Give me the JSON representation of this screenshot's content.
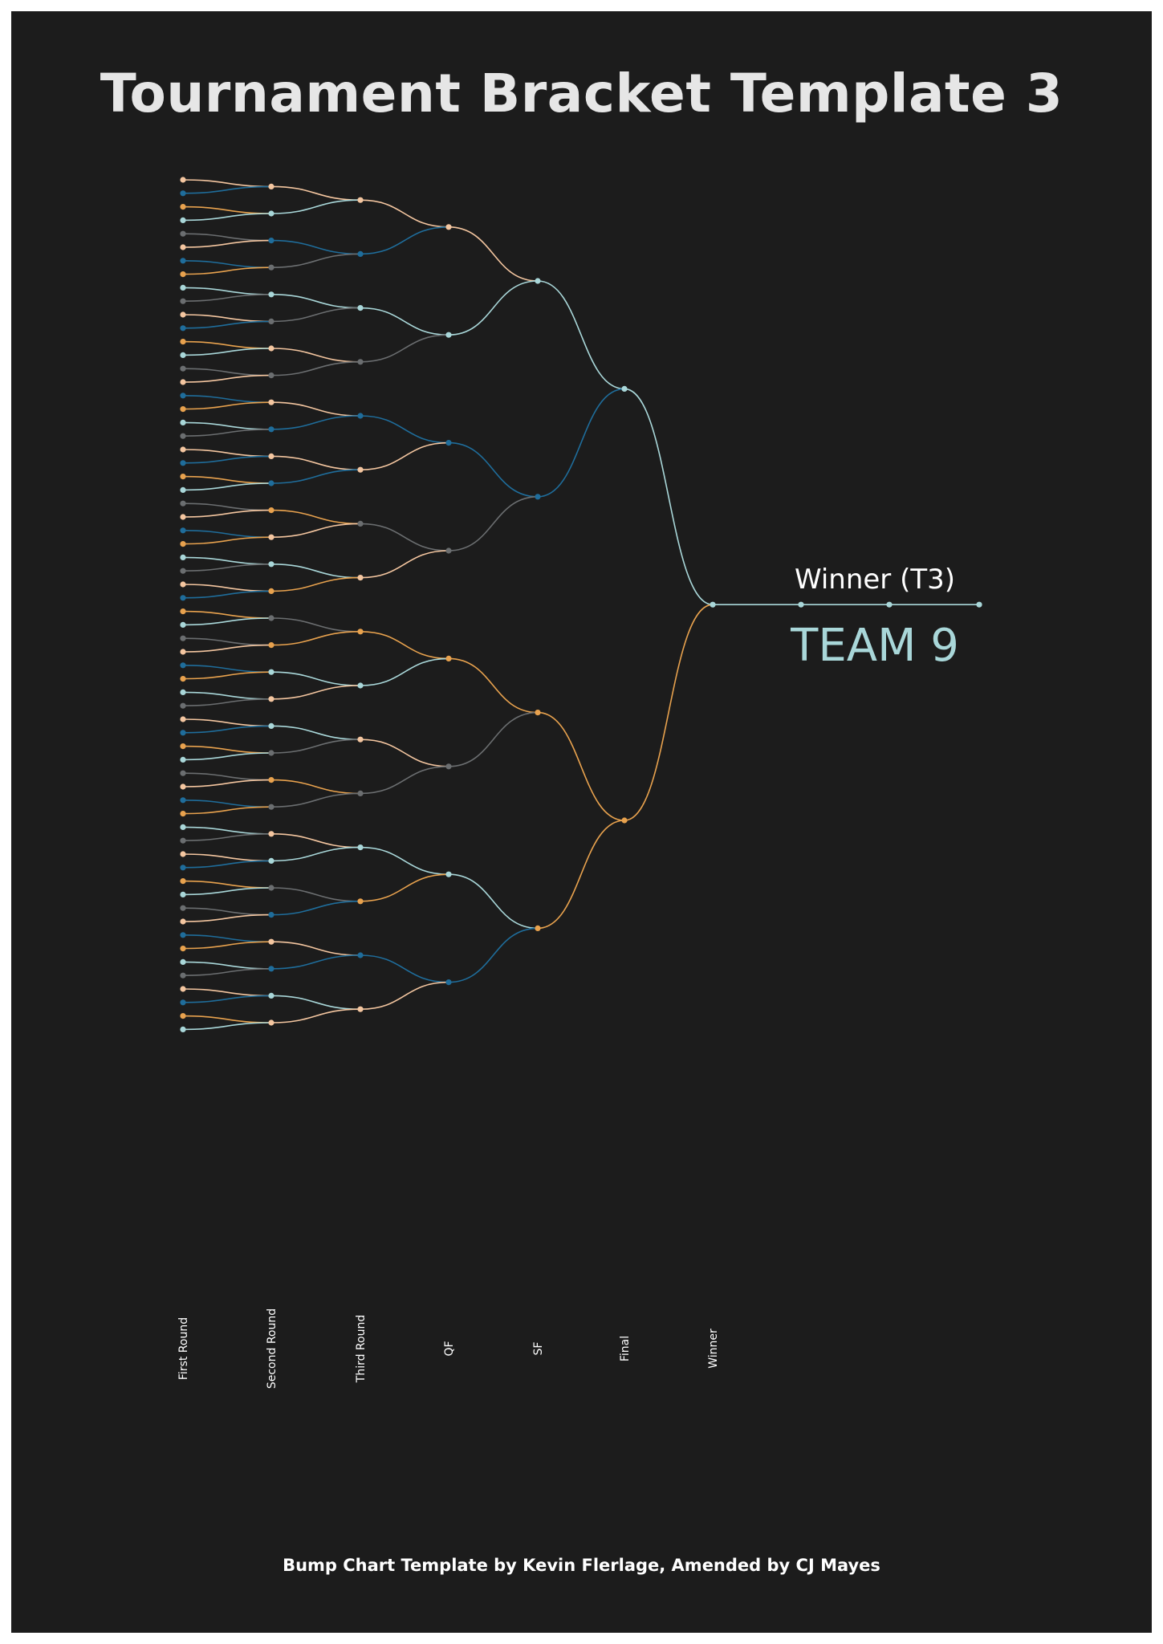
{
  "title": "Tournament Bracket Template 3",
  "credit": "Bump Chart Template by Kevin Flerlage, Amended by CJ Mayes",
  "winner_label": "Winner (T3)",
  "winner_name": "TEAM 9",
  "colors": {
    "background": "#1c1c1c",
    "palette": [
      "#f4c6a0",
      "#1f6d9b",
      "#e8a24e",
      "#a9d7d9",
      "#6b6e70"
    ]
  },
  "chart_data": {
    "type": "line",
    "categories": [
      "First Round",
      "Second Round",
      "Third Round",
      "QF",
      "SF",
      "Final",
      "Winner"
    ],
    "grid": false,
    "legend": "none",
    "first_round_colors": [
      0,
      1,
      2,
      3,
      4,
      0,
      1,
      2,
      3,
      4,
      0,
      1,
      2,
      3,
      4,
      0,
      1,
      2,
      3,
      4,
      0,
      1,
      2,
      3,
      4,
      0,
      1,
      2,
      3,
      4,
      0,
      1,
      2,
      3,
      4,
      0,
      1,
      2,
      3,
      4,
      0,
      1,
      2,
      3,
      4,
      0,
      1,
      2,
      3,
      4,
      0,
      1,
      2,
      3,
      4,
      0,
      1,
      2,
      3,
      4,
      0,
      1,
      2,
      3
    ],
    "advancing": [
      [
        0,
        3,
        1,
        4,
        3,
        4,
        0,
        4,
        0,
        1,
        0,
        1,
        2,
        0,
        3,
        2,
        4,
        2,
        3,
        0,
        3,
        4,
        2,
        4,
        0,
        3,
        4,
        1,
        0,
        1,
        3,
        0
      ],
      [
        0,
        1,
        3,
        4,
        1,
        0,
        4,
        0,
        2,
        3,
        0,
        4,
        3,
        2,
        1,
        0
      ],
      [
        0,
        3,
        1,
        4,
        2,
        4,
        3,
        1
      ],
      [
        3,
        1,
        2,
        2
      ],
      [
        3,
        2
      ],
      [
        3
      ]
    ],
    "winner_slot": 3
  }
}
